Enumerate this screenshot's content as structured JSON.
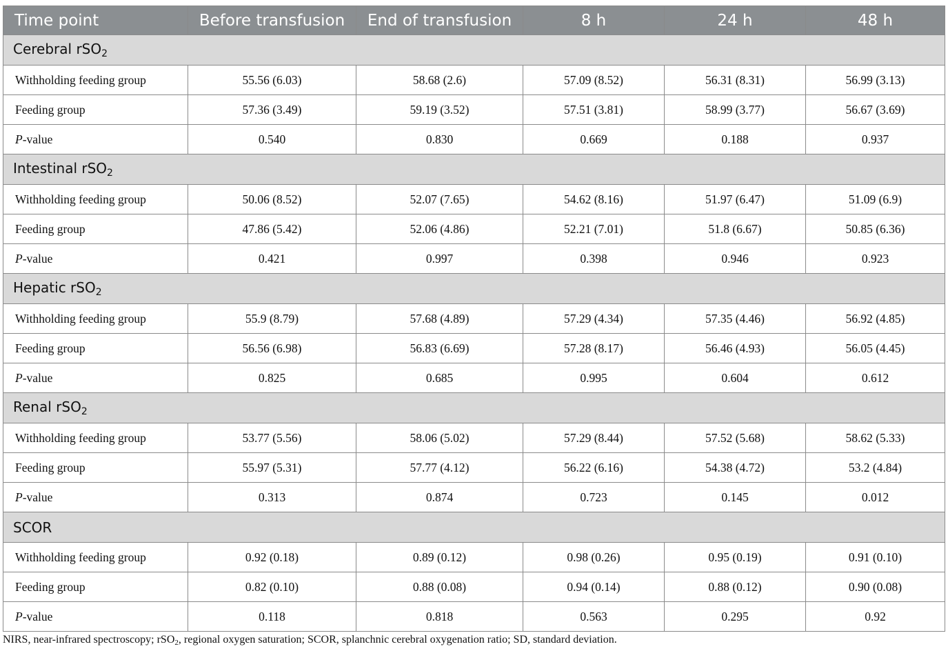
{
  "table": {
    "headers": [
      "Time point",
      "Before transfusion",
      "End of transfusion",
      "8 h",
      "24 h",
      "48 h"
    ],
    "sections": [
      {
        "title": "Cerebral rSO",
        "title_sub": "2",
        "rows": [
          {
            "label": "Withholding feeding group",
            "values": [
              "55.56 (6.03)",
              "58.68 (2.6)",
              "57.09 (8.52)",
              "56.31 (8.31)",
              "56.99 (3.13)"
            ]
          },
          {
            "label": "Feeding group",
            "values": [
              "57.36 (3.49)",
              "59.19 (3.52)",
              "57.51 (3.81)",
              "58.99 (3.77)",
              "56.67 (3.69)"
            ]
          },
          {
            "label_italic": "P",
            "label": "-value",
            "values": [
              "0.540",
              "0.830",
              "0.669",
              "0.188",
              "0.937"
            ]
          }
        ]
      },
      {
        "title": "Intestinal rSO",
        "title_sub": "2",
        "rows": [
          {
            "label": "Withholding feeding group",
            "values": [
              "50.06 (8.52)",
              "52.07 (7.65)",
              "54.62 (8.16)",
              "51.97 (6.47)",
              "51.09 (6.9)"
            ]
          },
          {
            "label": "Feeding group",
            "values": [
              "47.86 (5.42)",
              "52.06 (4.86)",
              "52.21 (7.01)",
              "51.8 (6.67)",
              "50.85 (6.36)"
            ]
          },
          {
            "label_italic": "P",
            "label": "-value",
            "values": [
              "0.421",
              "0.997",
              "0.398",
              "0.946",
              "0.923"
            ]
          }
        ]
      },
      {
        "title": "Hepatic rSO",
        "title_sub": "2",
        "rows": [
          {
            "label": "Withholding feeding group",
            "values": [
              "55.9 (8.79)",
              "57.68 (4.89)",
              "57.29 (4.34)",
              "57.35 (4.46)",
              "56.92 (4.85)"
            ]
          },
          {
            "label": "Feeding group",
            "values": [
              "56.56 (6.98)",
              "56.83 (6.69)",
              "57.28 (8.17)",
              "56.46 (4.93)",
              "56.05 (4.45)"
            ]
          },
          {
            "label_italic": "P",
            "label": "-value",
            "values": [
              "0.825",
              "0.685",
              "0.995",
              "0.604",
              "0.612"
            ]
          }
        ]
      },
      {
        "title": "Renal rSO",
        "title_sub": "2",
        "rows": [
          {
            "label": "Withholding feeding group",
            "values": [
              "53.77 (5.56)",
              "58.06 (5.02)",
              "57.29 (8.44)",
              "57.52 (5.68)",
              "58.62 (5.33)"
            ]
          },
          {
            "label": "Feeding group",
            "values": [
              "55.97 (5.31)",
              "57.77 (4.12)",
              "56.22 (6.16)",
              "54.38 (4.72)",
              "53.2 (4.84)"
            ]
          },
          {
            "label_italic": "P",
            "label": "-value",
            "values": [
              "0.313",
              "0.874",
              "0.723",
              "0.145",
              "0.012"
            ]
          }
        ]
      },
      {
        "title": "SCOR",
        "title_sub": "",
        "rows": [
          {
            "label": "Withholding feeding group",
            "values": [
              "0.92 (0.18)",
              "0.89 (0.12)",
              "0.98 (0.26)",
              "0.95 (0.19)",
              "0.91 (0.10)"
            ]
          },
          {
            "label": "Feeding group",
            "values": [
              "0.82 (0.10)",
              "0.88 (0.08)",
              "0.94 (0.14)",
              "0.88 (0.12)",
              "0.90 (0.08)"
            ]
          },
          {
            "label_italic": "P",
            "label": "-value",
            "values": [
              "0.118",
              "0.818",
              "0.563",
              "0.295",
              "0.92"
            ]
          }
        ]
      }
    ]
  },
  "footnote": {
    "before_sub": "NIRS, near-infrared spectroscopy; rSO",
    "sub": "2",
    "after_sub": ", regional oxygen saturation; SCOR, splanchnic cerebral oxygenation ratio; SD, standard deviation."
  },
  "colors": {
    "header_bg": "#8b8f92",
    "section_bg": "#d9d9d9",
    "border": "#8a8a8a"
  }
}
